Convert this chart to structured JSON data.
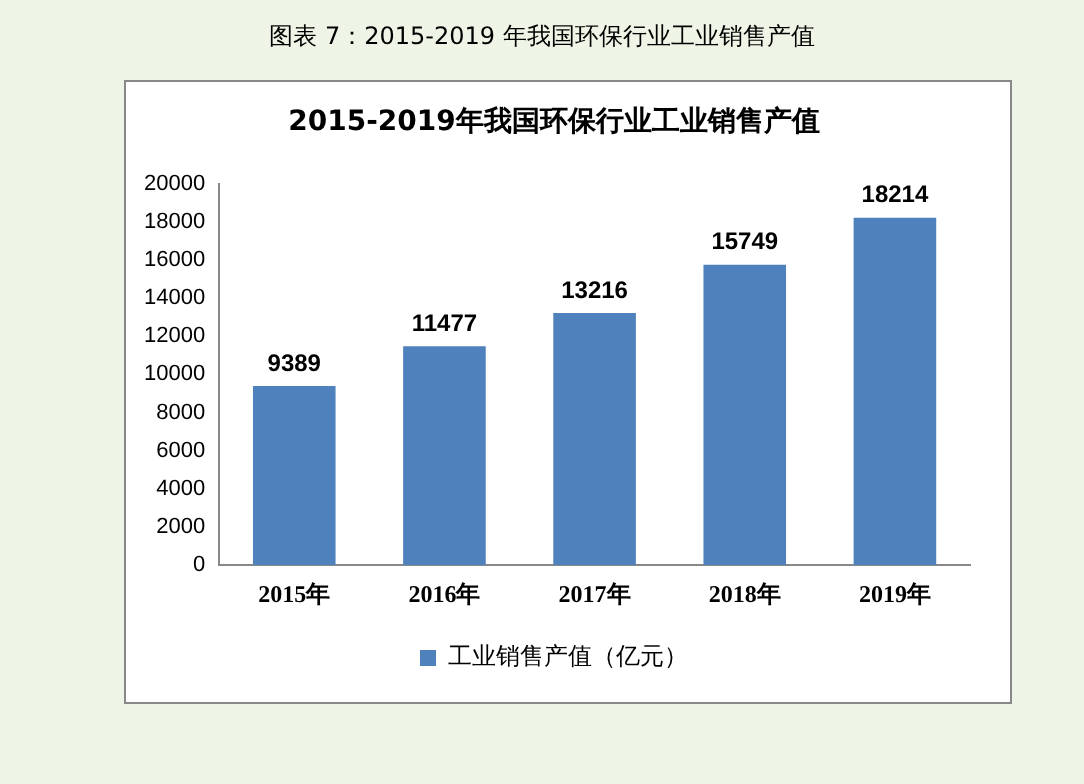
{
  "chart_data": {
    "type": "bar",
    "title": "2015-2019年我国环保行业工业销售产值",
    "annotations": [
      "图表 7：2015-2019 年我国环保行业工业销售产值"
    ],
    "categories": [
      "2015年",
      "2016年",
      "2017年",
      "2018年",
      "2019年"
    ],
    "series": [
      {
        "name": "工业销售产值（亿元）",
        "color": "#4f81bd",
        "values": [
          9389,
          11477,
          13216,
          15749,
          18214
        ]
      }
    ],
    "ylim": [
      0,
      20000
    ],
    "yticks": [
      0,
      2000,
      4000,
      6000,
      8000,
      10000,
      12000,
      14000,
      16000,
      18000,
      20000
    ],
    "grid": false,
    "legend": "bottom",
    "data_labels": true
  }
}
